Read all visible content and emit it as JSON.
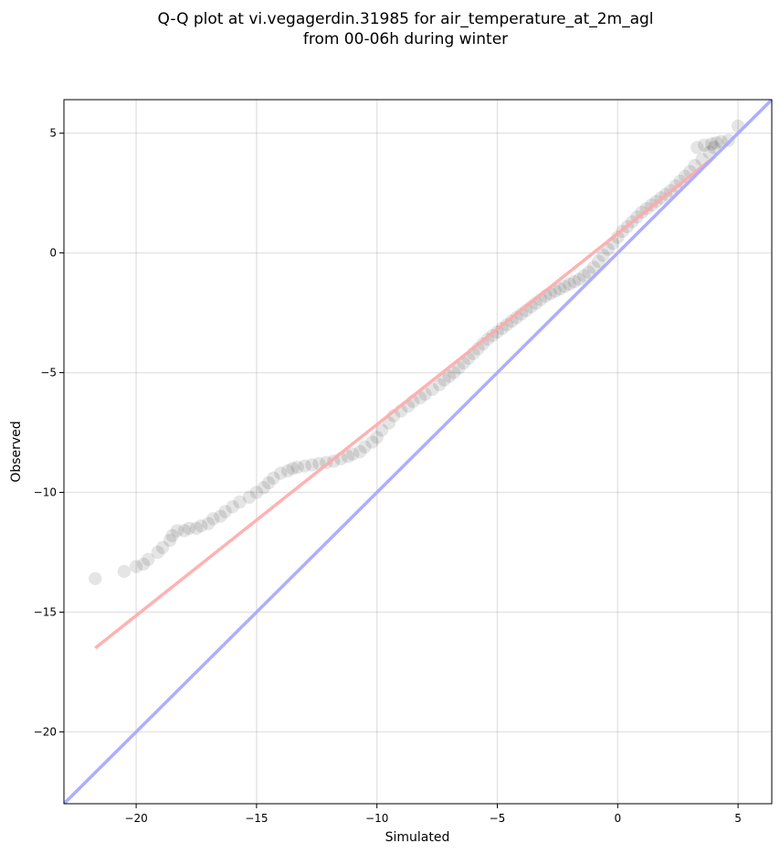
{
  "chart_data": {
    "type": "scatter",
    "title_lines": [
      "Q-Q plot at vi.vegagerdin.31985 for air_temperature_at_2m_agl",
      "from 00-06h during winter"
    ],
    "xlabel": "Simulated",
    "ylabel": "Observed",
    "xlim": [
      -23,
      6.4
    ],
    "ylim": [
      -23,
      6.4
    ],
    "xticks": [
      -20,
      -15,
      -10,
      -5,
      0,
      5
    ],
    "yticks": [
      -20,
      -15,
      -10,
      -5,
      0,
      5
    ],
    "xtick_labels": [
      "−20",
      "−15",
      "−10",
      "−5",
      "0",
      "5"
    ],
    "ytick_labels": [
      "−20",
      "−15",
      "−10",
      "−5",
      "0",
      "5"
    ],
    "grid": true,
    "lines": {
      "identity_color": "#aaaaff",
      "fit": {
        "x": [
          -21.7,
          4.0
        ],
        "y": [
          -16.5,
          4.0
        ],
        "color": "#ffaaaa"
      }
    },
    "series": [
      {
        "marker_color": "#000000",
        "x": [
          -21.7,
          -20.5,
          -20.0,
          -19.7,
          -19.5,
          -19.1,
          -18.9,
          -18.6,
          -18.5,
          -18.3,
          -18.0,
          -17.8,
          -17.5,
          -17.3,
          -17.0,
          -16.8,
          -16.5,
          -16.3,
          -16.0,
          -15.7,
          -15.3,
          -15.0,
          -14.7,
          -14.5,
          -14.3,
          -14.0,
          -13.7,
          -13.5,
          -13.3,
          -13.0,
          -12.7,
          -12.4,
          -12.1,
          -11.8,
          -11.5,
          -11.2,
          -11.0,
          -10.7,
          -10.5,
          -10.2,
          -10.0,
          -9.8,
          -9.5,
          -9.3,
          -9.0,
          -8.7,
          -8.5,
          -8.2,
          -8.0,
          -7.7,
          -7.4,
          -7.2,
          -7.0,
          -6.8,
          -6.6,
          -6.4,
          -6.2,
          -6.0,
          -5.8,
          -5.6,
          -5.4,
          -5.2,
          -5.0,
          -4.8,
          -4.6,
          -4.4,
          -4.2,
          -4.0,
          -3.8,
          -3.6,
          -3.4,
          -3.2,
          -3.0,
          -2.8,
          -2.6,
          -2.4,
          -2.2,
          -2.0,
          -1.8,
          -1.6,
          -1.4,
          -1.2,
          -1.0,
          -0.8,
          -0.6,
          -0.4,
          -0.2,
          0.0,
          0.2,
          0.4,
          0.6,
          0.8,
          1.0,
          1.2,
          1.4,
          1.6,
          1.8,
          2.0,
          2.2,
          2.4,
          2.6,
          2.8,
          3.0,
          3.2,
          3.5,
          3.8,
          4.0
        ],
        "y": [
          -13.6,
          -13.3,
          -13.1,
          -13.0,
          -12.8,
          -12.5,
          -12.3,
          -12.0,
          -11.8,
          -11.6,
          -11.6,
          -11.5,
          -11.5,
          -11.4,
          -11.3,
          -11.1,
          -11.0,
          -10.8,
          -10.6,
          -10.4,
          -10.2,
          -10.0,
          -9.8,
          -9.6,
          -9.4,
          -9.2,
          -9.1,
          -9.0,
          -8.95,
          -8.9,
          -8.85,
          -8.8,
          -8.75,
          -8.7,
          -8.6,
          -8.5,
          -8.4,
          -8.3,
          -8.1,
          -7.9,
          -7.7,
          -7.4,
          -7.1,
          -6.8,
          -6.6,
          -6.4,
          -6.2,
          -6.05,
          -5.9,
          -5.7,
          -5.5,
          -5.3,
          -5.15,
          -5.0,
          -4.8,
          -4.6,
          -4.4,
          -4.2,
          -4.0,
          -3.8,
          -3.6,
          -3.45,
          -3.3,
          -3.15,
          -3.0,
          -2.85,
          -2.7,
          -2.55,
          -2.4,
          -2.25,
          -2.1,
          -1.95,
          -1.8,
          -1.7,
          -1.6,
          -1.5,
          -1.4,
          -1.3,
          -1.2,
          -1.1,
          -0.95,
          -0.8,
          -0.6,
          -0.35,
          -0.1,
          0.15,
          0.4,
          0.65,
          0.9,
          1.1,
          1.3,
          1.5,
          1.7,
          1.85,
          2.0,
          2.15,
          2.3,
          2.45,
          2.6,
          2.8,
          3.0,
          3.2,
          3.4,
          3.65,
          3.9,
          4.2,
          4.4
        ]
      },
      {
        "marker_color": "#000000",
        "x": [
          3.3,
          3.6,
          3.9,
          4.1,
          4.3,
          4.6,
          5.0
        ],
        "y": [
          4.4,
          4.5,
          4.55,
          4.6,
          4.65,
          4.7,
          5.3
        ]
      }
    ]
  }
}
